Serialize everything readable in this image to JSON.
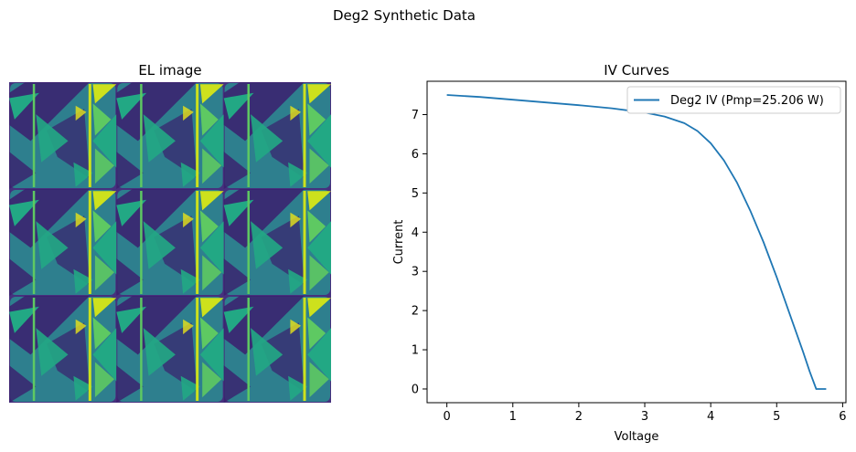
{
  "figure": {
    "suptitle": "Deg2 Synthetic Data"
  },
  "el_panel": {
    "title": "EL image",
    "grid": {
      "rows": 3,
      "cols": 3
    },
    "colors": {
      "background": "#46317e",
      "dark": "#3b1f6e",
      "mid": "#2e7f8e",
      "teal": "#22a884",
      "green": "#5ec962",
      "bright": "#cde11d",
      "yellow": "#e8e419"
    }
  },
  "chart_data": {
    "type": "line",
    "title": "IV Curves",
    "xlabel": "Voltage",
    "ylabel": "Current",
    "xlim": [
      -0.3,
      6.05
    ],
    "ylim": [
      -0.35,
      7.85
    ],
    "xticks": [
      0,
      1,
      2,
      3,
      4,
      5,
      6
    ],
    "yticks": [
      0,
      1,
      2,
      3,
      4,
      5,
      6,
      7
    ],
    "grid": false,
    "legend": "top-right",
    "series": [
      {
        "name": "Deg2 IV (Pmp=25.206 W)",
        "color": "#1f77b4",
        "x": [
          0,
          0.5,
          1.0,
          1.5,
          2.0,
          2.5,
          3.0,
          3.3,
          3.6,
          3.8,
          4.0,
          4.2,
          4.4,
          4.6,
          4.8,
          5.0,
          5.2,
          5.4,
          5.5,
          5.6,
          5.75
        ],
        "y": [
          7.5,
          7.45,
          7.38,
          7.31,
          7.24,
          7.16,
          7.05,
          6.95,
          6.78,
          6.58,
          6.27,
          5.83,
          5.26,
          4.55,
          3.75,
          2.85,
          1.9,
          0.95,
          0.45,
          0.0,
          0.0
        ]
      }
    ]
  }
}
